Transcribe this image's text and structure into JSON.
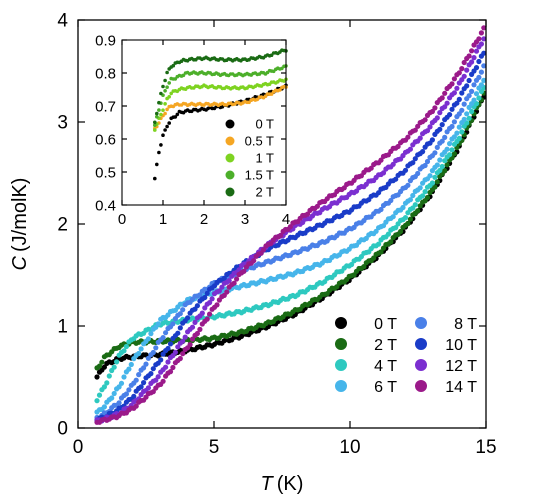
{
  "chart_data": [
    {
      "type": "scatter",
      "xlabel": "T (K)",
      "xlabel_var": "T",
      "xlabel_unit": "(K)",
      "ylabel": "C (J/molK)",
      "ylabel_var": "C",
      "ylabel_unit": "(J/molK)",
      "xlim": [
        0,
        15
      ],
      "ylim": [
        0,
        4
      ],
      "xticks": [
        "0",
        "5",
        "10",
        "15"
      ],
      "yticks": [
        "0",
        "1",
        "2",
        "3",
        "4"
      ],
      "legend_position": "bottom-right",
      "series": [
        {
          "name": "0 T",
          "color": "#000000",
          "x": [
            0.7,
            1.0,
            1.5,
            2.0,
            3.0,
            4.0,
            5.0,
            6.0,
            7.0,
            8.0,
            9.0,
            10.0,
            11.0,
            12.0,
            13.0,
            14.0,
            15.0
          ],
          "y": [
            0.5,
            0.62,
            0.68,
            0.7,
            0.72,
            0.76,
            0.82,
            0.9,
            1.0,
            1.12,
            1.28,
            1.46,
            1.68,
            1.95,
            2.3,
            2.75,
            3.3
          ]
        },
        {
          "name": "2 T",
          "color": "#1a6b14",
          "x": [
            0.7,
            1.0,
            1.5,
            2.0,
            3.0,
            4.0,
            5.0,
            6.0,
            7.0,
            8.0,
            9.0,
            10.0,
            11.0,
            12.0,
            13.0,
            14.0,
            15.0
          ],
          "y": [
            0.58,
            0.7,
            0.8,
            0.84,
            0.85,
            0.86,
            0.88,
            0.94,
            1.03,
            1.15,
            1.3,
            1.48,
            1.7,
            1.97,
            2.32,
            2.77,
            3.32
          ]
        },
        {
          "name": "4 T",
          "color": "#2ec9c0",
          "x": [
            0.7,
            1.0,
            1.5,
            2.0,
            3.0,
            4.0,
            5.0,
            6.0,
            7.0,
            8.0,
            9.0,
            10.0,
            11.0,
            12.0,
            13.0,
            14.0,
            15.0
          ],
          "y": [
            0.28,
            0.42,
            0.7,
            0.88,
            1.02,
            1.06,
            1.09,
            1.14,
            1.21,
            1.3,
            1.43,
            1.6,
            1.8,
            2.06,
            2.4,
            2.84,
            3.38
          ]
        },
        {
          "name": "6 T",
          "color": "#46b5ea",
          "x": [
            0.7,
            1.0,
            1.5,
            2.0,
            3.0,
            4.0,
            5.0,
            6.0,
            7.0,
            8.0,
            9.0,
            10.0,
            11.0,
            12.0,
            13.0,
            14.0,
            15.0
          ],
          "y": [
            0.15,
            0.22,
            0.4,
            0.65,
            1.05,
            1.25,
            1.33,
            1.39,
            1.45,
            1.52,
            1.62,
            1.76,
            1.94,
            2.18,
            2.5,
            2.93,
            3.46
          ]
        },
        {
          "name": "8 T",
          "color": "#4a80e8",
          "x": [
            0.7,
            1.0,
            1.5,
            2.0,
            3.0,
            4.0,
            5.0,
            6.0,
            7.0,
            8.0,
            9.0,
            10.0,
            11.0,
            12.0,
            13.0,
            14.0,
            15.0
          ],
          "y": [
            0.1,
            0.14,
            0.25,
            0.42,
            0.85,
            1.22,
            1.42,
            1.54,
            1.63,
            1.72,
            1.82,
            1.95,
            2.12,
            2.35,
            2.66,
            3.07,
            3.58
          ]
        },
        {
          "name": "10 T",
          "color": "#1a3cc8",
          "x": [
            0.7,
            1.0,
            1.5,
            2.0,
            3.0,
            4.0,
            5.0,
            6.0,
            7.0,
            8.0,
            9.0,
            10.0,
            11.0,
            12.0,
            13.0,
            14.0,
            15.0
          ],
          "y": [
            0.08,
            0.11,
            0.18,
            0.3,
            0.66,
            1.08,
            1.4,
            1.6,
            1.76,
            1.88,
            2.0,
            2.13,
            2.3,
            2.52,
            2.82,
            3.22,
            3.72
          ]
        },
        {
          "name": "12 T",
          "color": "#7b2fd0",
          "x": [
            0.7,
            1.0,
            1.5,
            2.0,
            3.0,
            4.0,
            5.0,
            6.0,
            7.0,
            8.0,
            9.0,
            10.0,
            11.0,
            12.0,
            13.0,
            14.0,
            15.0
          ],
          "y": [
            0.07,
            0.09,
            0.14,
            0.23,
            0.52,
            0.92,
            1.3,
            1.58,
            1.8,
            1.98,
            2.14,
            2.29,
            2.46,
            2.68,
            2.97,
            3.36,
            3.86
          ]
        },
        {
          "name": "14 T",
          "color": "#9b1a8a",
          "x": [
            0.7,
            1.0,
            1.5,
            2.0,
            3.0,
            4.0,
            5.0,
            6.0,
            7.0,
            8.0,
            9.0,
            10.0,
            11.0,
            12.0,
            13.0,
            14.0,
            15.0
          ],
          "y": [
            0.06,
            0.08,
            0.12,
            0.19,
            0.42,
            0.78,
            1.18,
            1.52,
            1.8,
            2.02,
            2.22,
            2.4,
            2.6,
            2.82,
            3.1,
            3.48,
            3.95
          ]
        }
      ]
    },
    {
      "type": "scatter",
      "inset": true,
      "xlim": [
        0,
        4
      ],
      "ylim": [
        0.4,
        0.9
      ],
      "xticks": [
        "0",
        "1",
        "2",
        "3",
        "4"
      ],
      "yticks": [
        "0.4",
        "0.5",
        "0.6",
        "0.7",
        "0.8",
        "0.9"
      ],
      "legend_position": "bottom-right",
      "series": [
        {
          "name": "0 T",
          "color": "#000000",
          "x": [
            0.8,
            0.9,
            1.0,
            1.1,
            1.2,
            1.4,
            1.6,
            2.0,
            2.5,
            3.0,
            3.5,
            4.0
          ],
          "y": [
            0.48,
            0.56,
            0.61,
            0.64,
            0.66,
            0.68,
            0.685,
            0.69,
            0.7,
            0.715,
            0.735,
            0.76
          ]
        },
        {
          "name": "0.5 T",
          "color": "#f5a623",
          "x": [
            0.8,
            0.9,
            1.0,
            1.1,
            1.2,
            1.4,
            1.6,
            2.0,
            2.5,
            3.0,
            3.5,
            4.0
          ],
          "y": [
            0.63,
            0.65,
            0.67,
            0.69,
            0.7,
            0.705,
            0.705,
            0.705,
            0.705,
            0.71,
            0.73,
            0.76
          ]
        },
        {
          "name": "1 T",
          "color": "#7ed321",
          "x": [
            0.8,
            0.9,
            1.0,
            1.1,
            1.2,
            1.4,
            1.6,
            2.0,
            2.5,
            3.0,
            3.5,
            4.0
          ],
          "y": [
            0.63,
            0.66,
            0.69,
            0.72,
            0.74,
            0.75,
            0.755,
            0.76,
            0.755,
            0.755,
            0.765,
            0.78
          ]
        },
        {
          "name": "1.5 T",
          "color": "#4caf2a",
          "x": [
            0.8,
            0.9,
            1.0,
            1.1,
            1.2,
            1.4,
            1.6,
            2.0,
            2.5,
            3.0,
            3.5,
            4.0
          ],
          "y": [
            0.64,
            0.69,
            0.73,
            0.76,
            0.78,
            0.79,
            0.8,
            0.8,
            0.795,
            0.795,
            0.8,
            0.82
          ]
        },
        {
          "name": "2 T",
          "color": "#1a6b14",
          "x": [
            0.8,
            0.9,
            1.0,
            1.1,
            1.2,
            1.4,
            1.6,
            2.0,
            2.5,
            3.0,
            3.5,
            4.0
          ],
          "y": [
            0.65,
            0.71,
            0.76,
            0.8,
            0.82,
            0.835,
            0.84,
            0.845,
            0.84,
            0.84,
            0.85,
            0.87
          ]
        }
      ]
    }
  ]
}
